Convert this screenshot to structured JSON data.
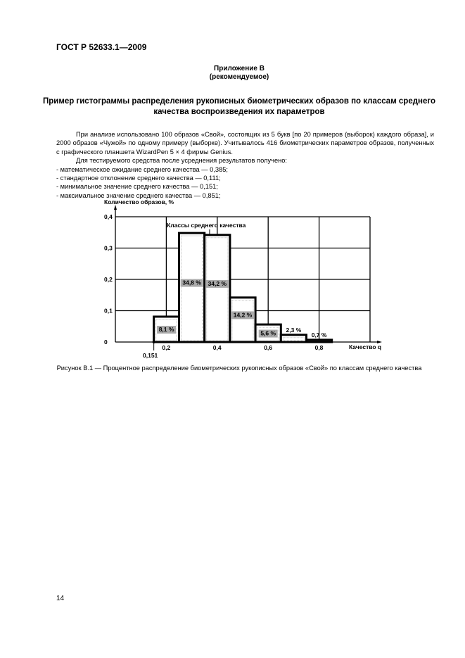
{
  "header": {
    "standard": "ГОСТ Р 52633.1—2009"
  },
  "appendix": {
    "title": "Приложение В",
    "subtitle": "(рекомендуемое)"
  },
  "section_title": "Пример гистограммы распределения рукописных биометрических образов по классам среднего качества воспроизведения их параметров",
  "body": {
    "paragraph1": "При анализе использовано 100 образов «Свой», состоящих из 5 букв [по 20 примеров (выборок) каждого образа], и 2000 образов «Чужой» по одному примеру (выборке). Учитывалось 416 биометрических параметров образов, полученных с графического планшета WizardPen 5 × 4 фирмы Genius.",
    "paragraph2": "Для тестируемого средства после усреднения результатов получено:",
    "items": [
      "- математическое ожидание среднего качества — 0,385;",
      "- стандартное отклонение среднего качества — 0,111;",
      "- минимальное значение среднего качества — 0,151;",
      "- максимальное значение среднего качества — 0,851;"
    ]
  },
  "chart_data": {
    "type": "bar",
    "ylabel": "Количество образов, %",
    "xlabel": "Качество q",
    "annotation": "Классы среднего качества",
    "min_marker_label": "0,151",
    "min_marker_value": 0.151,
    "xlim": [
      0,
      1.0
    ],
    "ylim": [
      0,
      0.4
    ],
    "grid": true,
    "x_ticks": [
      {
        "value": 0.2,
        "label": "0,2"
      },
      {
        "value": 0.4,
        "label": "0,4"
      },
      {
        "value": 0.6,
        "label": "0,6"
      },
      {
        "value": 0.8,
        "label": "0,8"
      }
    ],
    "y_ticks": [
      {
        "value": 0,
        "label": "0"
      },
      {
        "value": 0.1,
        "label": "0,1"
      },
      {
        "value": 0.2,
        "label": "0,2"
      },
      {
        "value": 0.3,
        "label": "0,3"
      },
      {
        "value": 0.4,
        "label": "0,4"
      }
    ],
    "bins": [
      {
        "from": 0.151,
        "to": 0.25,
        "value": 0.081,
        "label": "8,1 %"
      },
      {
        "from": 0.25,
        "to": 0.35,
        "value": 0.348,
        "label": "34,8 %"
      },
      {
        "from": 0.35,
        "to": 0.45,
        "value": 0.342,
        "label": "34,2 %"
      },
      {
        "from": 0.45,
        "to": 0.55,
        "value": 0.142,
        "label": "14,2 %"
      },
      {
        "from": 0.55,
        "to": 0.65,
        "value": 0.056,
        "label": "5,6 %"
      },
      {
        "from": 0.65,
        "to": 0.75,
        "value": 0.023,
        "label": "2,3 %"
      },
      {
        "from": 0.75,
        "to": 0.85,
        "value": 0.007,
        "label": "0,7 %"
      }
    ]
  },
  "caption": "Рисунок В.1 — Процентное распределение биометрических рукописных образов «Свой» по классам среднего качества",
  "page_number": "14"
}
